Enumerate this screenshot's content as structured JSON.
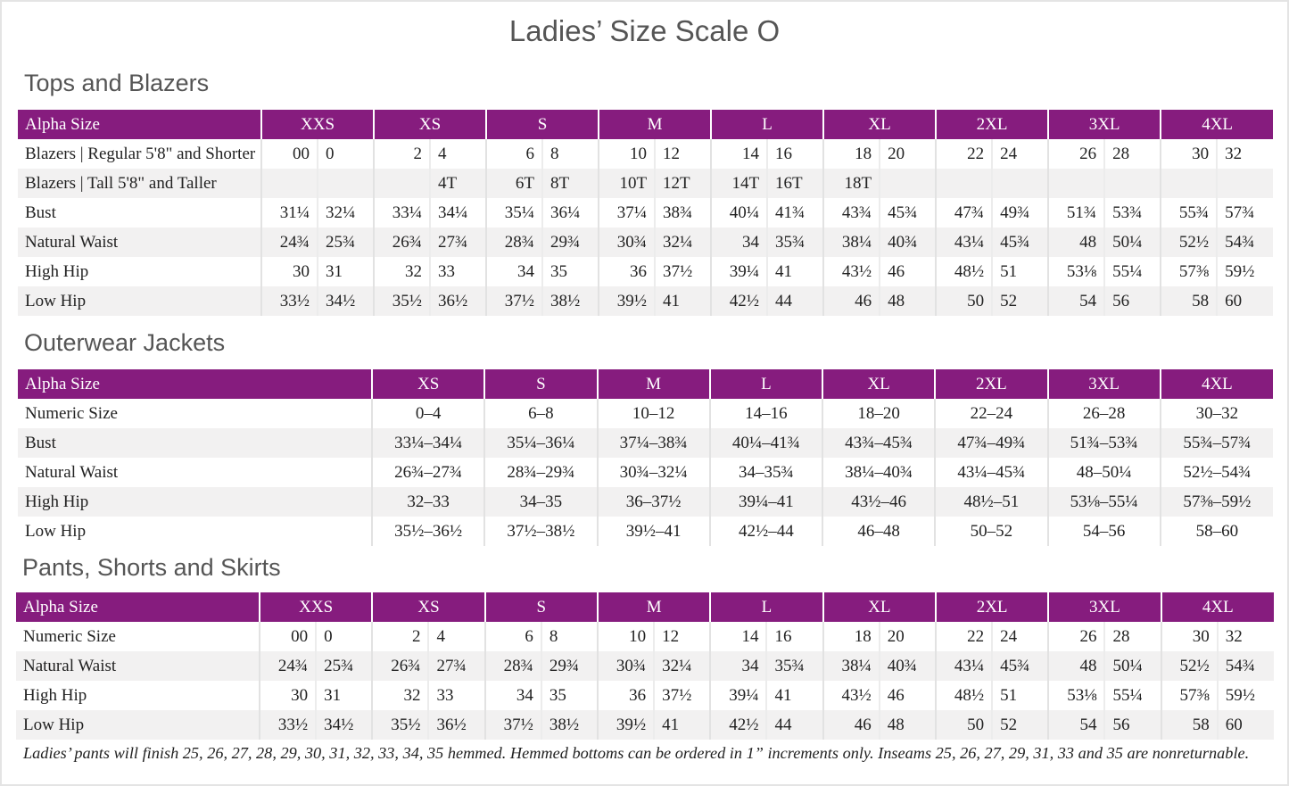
{
  "title": "Ladies’ Size Scale O",
  "accent_color": "#861c7e",
  "tops": {
    "heading": "Tops and Blazers",
    "header": [
      "Alpha Size",
      "XXS",
      "XS",
      "S",
      "M",
      "L",
      "XL",
      "2XL",
      "3XL",
      "4XL"
    ],
    "rows": [
      {
        "label": "Blazers | Regular 5'8\" and Shorter",
        "cells": [
          "00",
          "0",
          "2",
          "4",
          "6",
          "8",
          "10",
          "12",
          "14",
          "16",
          "18",
          "20",
          "22",
          "24",
          "26",
          "28",
          "30",
          "32"
        ]
      },
      {
        "label": "Blazers | Tall 5'8\" and Taller",
        "cells": [
          "",
          "",
          "",
          "4T",
          "6T",
          "8T",
          "10T",
          "12T",
          "14T",
          "16T",
          "18T",
          "",
          "",
          "",
          "",
          "",
          "",
          ""
        ]
      },
      {
        "label": "Bust",
        "cells": [
          "31¼",
          "32¼",
          "33¼",
          "34¼",
          "35¼",
          "36¼",
          "37¼",
          "38¾",
          "40¼",
          "41¾",
          "43¾",
          "45¾",
          "47¾",
          "49¾",
          "51¾",
          "53¾",
          "55¾",
          "57¾"
        ]
      },
      {
        "label": "Natural Waist",
        "cells": [
          "24¾",
          "25¾",
          "26¾",
          "27¾",
          "28¾",
          "29¾",
          "30¾",
          "32¼",
          "34",
          "35¾",
          "38¼",
          "40¾",
          "43¼",
          "45¾",
          "48",
          "50¼",
          "52½",
          "54¾"
        ]
      },
      {
        "label": "High Hip",
        "cells": [
          "30",
          "31",
          "32",
          "33",
          "34",
          "35",
          "36",
          "37½",
          "39¼",
          "41",
          "43½",
          "46",
          "48½",
          "51",
          "53⅛",
          "55¼",
          "57⅜",
          "59½"
        ]
      },
      {
        "label": "Low Hip",
        "cells": [
          "33½",
          "34½",
          "35½",
          "36½",
          "37½",
          "38½",
          "39½",
          "41",
          "42½",
          "44",
          "46",
          "48",
          "50",
          "52",
          "54",
          "56",
          "58",
          "60"
        ]
      }
    ]
  },
  "outerwear": {
    "heading": "Outerwear Jackets",
    "header": [
      "Alpha Size",
      "XS",
      "S",
      "M",
      "L",
      "XL",
      "2XL",
      "3XL",
      "4XL"
    ],
    "rows": [
      {
        "label": "Numeric Size",
        "cells": [
          "0–4",
          "6–8",
          "10–12",
          "14–16",
          "18–20",
          "22–24",
          "26–28",
          "30–32"
        ]
      },
      {
        "label": "Bust",
        "cells": [
          "33¼–34¼",
          "35¼–36¼",
          "37¼–38¾",
          "40¼–41¾",
          "43¾–45¾",
          "47¾–49¾",
          "51¾–53¾",
          "55¾–57¾"
        ]
      },
      {
        "label": "Natural Waist",
        "cells": [
          "26¾–27¾",
          "28¾–29¾",
          "30¾–32¼",
          "34–35¾",
          "38¼–40¾",
          "43¼–45¾",
          "48–50¼",
          "52½–54¾"
        ]
      },
      {
        "label": "High Hip",
        "cells": [
          "32–33",
          "34–35",
          "36–37½",
          "39¼–41",
          "43½–46",
          "48½–51",
          "53⅛–55¼",
          "57⅜–59½"
        ]
      },
      {
        "label": "Low Hip",
        "cells": [
          "35½–36½",
          "37½–38½",
          "39½–41",
          "42½–44",
          "46–48",
          "50–52",
          "54–56",
          "58–60"
        ]
      }
    ]
  },
  "pants": {
    "heading": "Pants, Shorts and Skirts",
    "header": [
      "Alpha Size",
      "XXS",
      "XS",
      "S",
      "M",
      "L",
      "XL",
      "2XL",
      "3XL",
      "4XL"
    ],
    "rows": [
      {
        "label": "Numeric Size",
        "cells": [
          "00",
          "0",
          "2",
          "4",
          "6",
          "8",
          "10",
          "12",
          "14",
          "16",
          "18",
          "20",
          "22",
          "24",
          "26",
          "28",
          "30",
          "32"
        ]
      },
      {
        "label": "Natural Waist",
        "cells": [
          "24¾",
          "25¾",
          "26¾",
          "27¾",
          "28¾",
          "29¾",
          "30¾",
          "32¼",
          "34",
          "35¾",
          "38¼",
          "40¾",
          "43¼",
          "45¾",
          "48",
          "50¼",
          "52½",
          "54¾"
        ]
      },
      {
        "label": "High Hip",
        "cells": [
          "30",
          "31",
          "32",
          "33",
          "34",
          "35",
          "36",
          "37½",
          "39¼",
          "41",
          "43½",
          "46",
          "48½",
          "51",
          "53⅛",
          "55¼",
          "57⅜",
          "59½"
        ]
      },
      {
        "label": "Low Hip",
        "cells": [
          "33½",
          "34½",
          "35½",
          "36½",
          "37½",
          "38½",
          "39½",
          "41",
          "42½",
          "44",
          "46",
          "48",
          "50",
          "52",
          "54",
          "56",
          "58",
          "60"
        ]
      }
    ],
    "note": "Ladies’ pants will finish 25, 26, 27, 28, 29, 30, 31, 32, 33, 34, 35 hemmed. Hemmed bottoms can be ordered in 1” increments only. Inseams 25, 26, 27, 29, 31, 33 and 35 are nonreturnable."
  }
}
